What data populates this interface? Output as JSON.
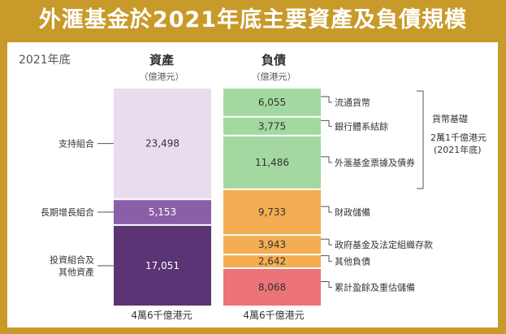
{
  "title": "外滙基金於2021年底主要資產及負債規模",
  "colors": {
    "frame": "#c89a2a",
    "connector": "#555555"
  },
  "chart_data": {
    "type": "bar",
    "subtype": "stacked-bar",
    "year_label": "2021年底",
    "unit": "（億港元）",
    "backing": {
      "label": "貨幣基礎",
      "note_lines": [
        "2萬1千億港元",
        "(2021年底)"
      ]
    },
    "columns": [
      {
        "id": "assets",
        "title": "資產",
        "unit": "（億港元）",
        "total_label": "4萬6千億港元",
        "segments": [
          {
            "label": "支持組合",
            "value": 23498,
            "value_label": "23,498",
            "color": "#e8dcef"
          },
          {
            "label": "長期增長組合",
            "value": 5153,
            "value_label": "5,153",
            "color": "#8a5fa8"
          },
          {
            "label": "投資組合及其他資產",
            "label_lines": [
              "投資組合及",
              "其他資產"
            ],
            "value": 17051,
            "value_label": "17,051",
            "color": "#5a3474"
          }
        ]
      },
      {
        "id": "liabilities",
        "title": "負債",
        "unit": "（億港元）",
        "total_label": "4萬6千億港元",
        "segments": [
          {
            "label": "流通貨幣",
            "value": 6055,
            "value_label": "6,055",
            "color": "#a3d9a0"
          },
          {
            "label": "銀行體系結餘",
            "value": 3775,
            "value_label": "3,775",
            "color": "#a3d9a0"
          },
          {
            "label": "外滙基金票據及債券",
            "value": 11486,
            "value_label": "11,486",
            "color": "#a3d9a0"
          },
          {
            "label": "財政儲備",
            "value": 9733,
            "value_label": "9,733",
            "color": "#f4ad52"
          },
          {
            "label": "政府基金及法定組織存款",
            "value": 3943,
            "value_label": "3,943",
            "color": "#f4ad52"
          },
          {
            "label": "其他負債",
            "value": 2642,
            "value_label": "2,642",
            "color": "#f4ad52"
          },
          {
            "label": "累計盈餘及重估儲備",
            "value": 8068,
            "value_label": "8,068",
            "color": "#ec7377"
          }
        ]
      }
    ]
  }
}
